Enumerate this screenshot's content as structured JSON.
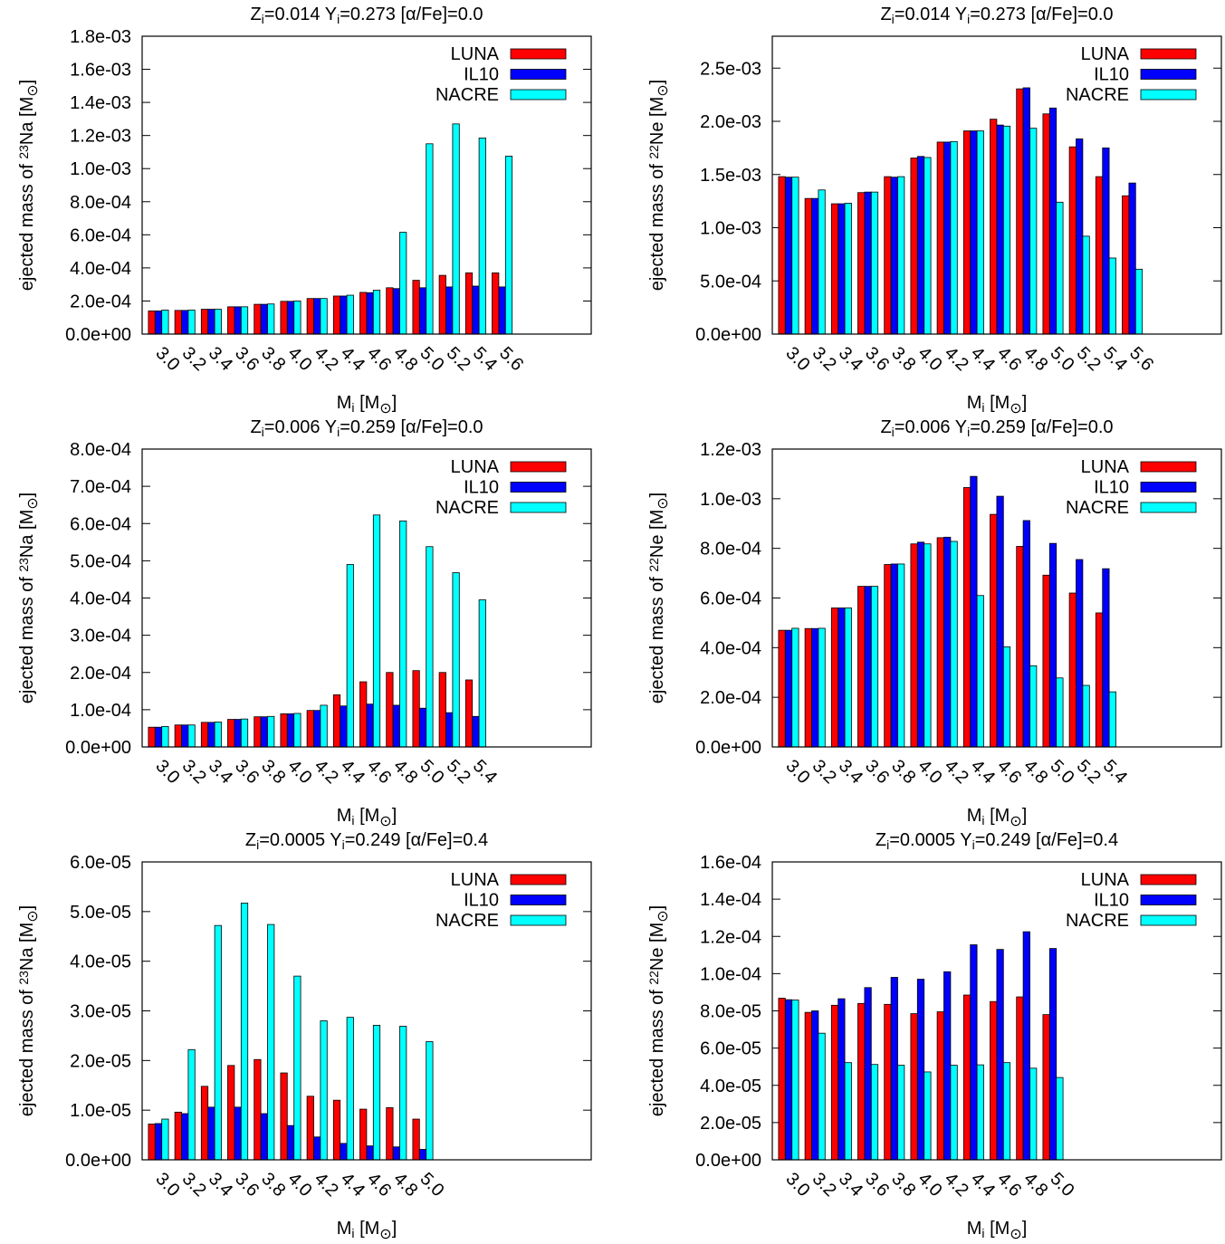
{
  "colors": {
    "LUNA": "#ff0000",
    "IL10": "#0000ff",
    "NACRE": "#00ffff"
  },
  "chart_data": [
    {
      "type": "bar",
      "title_parts": [
        "Z",
        "i",
        "=0.014 Y",
        "i",
        "=0.273  [α/Fe]=0.0"
      ],
      "ylabel_parts": [
        "ejected mass  of ",
        "23",
        "Na  [M",
        "⊙",
        "]"
      ],
      "xlabel_parts": [
        "M",
        "i",
        " [M",
        "⊙",
        "]"
      ],
      "categories": [
        "3.0",
        "3.2",
        "3.4",
        "3.6",
        "3.8",
        "4.0",
        "4.2",
        "4.4",
        "4.6",
        "4.8",
        "5.0",
        "5.2",
        "5.4",
        "5.6"
      ],
      "ylim": [
        0,
        0.0018
      ],
      "yticks": [
        "0.0e+00",
        "2.0e-04",
        "4.0e-04",
        "6.0e-04",
        "8.0e-04",
        "1.0e-03",
        "1.2e-03",
        "1.4e-03",
        "1.6e-03",
        "1.8e-03"
      ],
      "legend_position": "top-right",
      "series": [
        {
          "name": "LUNA",
          "values": [
            0.00014,
            0.000143,
            0.00015,
            0.000165,
            0.00018,
            0.000198,
            0.000215,
            0.00023,
            0.000252,
            0.00028,
            0.000325,
            0.000355,
            0.00037,
            0.00037
          ]
        },
        {
          "name": "IL10",
          "values": [
            0.00014,
            0.000143,
            0.00015,
            0.000165,
            0.00018,
            0.000198,
            0.000215,
            0.00023,
            0.00025,
            0.000275,
            0.00028,
            0.000285,
            0.00029,
            0.000285
          ]
        },
        {
          "name": "NACRE",
          "values": [
            0.000145,
            0.000145,
            0.00015,
            0.000165,
            0.000182,
            0.0002,
            0.000215,
            0.000235,
            0.000265,
            0.000615,
            0.00115,
            0.00127,
            0.001185,
            0.001075
          ]
        }
      ]
    },
    {
      "type": "bar",
      "title_parts": [
        "Z",
        "i",
        "=0.014 Y",
        "i",
        "=0.273  [α/Fe]=0.0"
      ],
      "ylabel_parts": [
        "ejected mass  of ",
        "22",
        "Ne  [M",
        "⊙",
        "]"
      ],
      "xlabel_parts": [
        "M",
        "i",
        " [M",
        "⊙",
        "]"
      ],
      "categories": [
        "3.0",
        "3.2",
        "3.4",
        "3.6",
        "3.8",
        "4.0",
        "4.2",
        "4.4",
        "4.6",
        "4.8",
        "5.0",
        "5.2",
        "5.4",
        "5.6"
      ],
      "ylim": [
        0,
        0.0028
      ],
      "yticks": [
        "0.0e+00",
        "5.0e-04",
        "1.0e-03",
        "1.5e-03",
        "2.0e-03",
        "2.5e-03"
      ],
      "ytick_values": [
        0,
        0.0005,
        0.001,
        0.0015,
        0.002,
        0.0025
      ],
      "legend_position": "top-right",
      "series": [
        {
          "name": "LUNA",
          "values": [
            0.00148,
            0.001275,
            0.001225,
            0.00133,
            0.00148,
            0.001655,
            0.001805,
            0.00191,
            0.00202,
            0.002305,
            0.00207,
            0.00176,
            0.00148,
            0.0013
          ]
        },
        {
          "name": "IL10",
          "values": [
            0.001475,
            0.001275,
            0.001225,
            0.001335,
            0.001475,
            0.00167,
            0.001805,
            0.00191,
            0.001965,
            0.002315,
            0.002125,
            0.001835,
            0.00175,
            0.00142
          ]
        },
        {
          "name": "NACRE",
          "values": [
            0.001475,
            0.001355,
            0.00123,
            0.001335,
            0.00148,
            0.00166,
            0.00181,
            0.00191,
            0.001955,
            0.001935,
            0.00124,
            0.00092,
            0.000715,
            0.00061
          ]
        }
      ]
    },
    {
      "type": "bar",
      "title_parts": [
        "Z",
        "i",
        "=0.006 Y",
        "i",
        "=0.259  [α/Fe]=0.0"
      ],
      "ylabel_parts": [
        "ejected mass  of ",
        "23",
        "Na  [M",
        "⊙",
        "]"
      ],
      "xlabel_parts": [
        "M",
        "i",
        " [M",
        "⊙",
        "]"
      ],
      "categories": [
        "3.0",
        "3.2",
        "3.4",
        "3.6",
        "3.8",
        "4.0",
        "4.2",
        "4.4",
        "4.6",
        "4.8",
        "5.0",
        "5.2",
        "5.4"
      ],
      "ylim": [
        0,
        0.0008
      ],
      "yticks": [
        "0.0e+00",
        "1.0e-04",
        "2.0e-04",
        "3.0e-04",
        "4.0e-04",
        "5.0e-04",
        "6.0e-04",
        "7.0e-04",
        "8.0e-04"
      ],
      "legend_position": "top-right",
      "series": [
        {
          "name": "LUNA",
          "values": [
            5.3e-05,
            5.9e-05,
            6.6e-05,
            7.4e-05,
            8.1e-05,
            8.9e-05,
            9.8e-05,
            0.00014,
            0.000175,
            0.0002,
            0.000205,
            0.0002,
            0.00018
          ]
        },
        {
          "name": "IL10",
          "values": [
            5.3e-05,
            5.9e-05,
            6.6e-05,
            7.4e-05,
            8.1e-05,
            8.9e-05,
            9.8e-05,
            0.00011,
            0.000115,
            0.000112,
            0.000104,
            9.2e-05,
            8.2e-05
          ]
        },
        {
          "name": "NACRE",
          "values": [
            5.5e-05,
            5.9e-05,
            6.7e-05,
            7.5e-05,
            8.2e-05,
            9e-05,
            0.000112,
            0.00049,
            0.000623,
            0.000607,
            0.000538,
            0.000468,
            0.000395
          ]
        }
      ]
    },
    {
      "type": "bar",
      "title_parts": [
        "Z",
        "i",
        "=0.006 Y",
        "i",
        "=0.259  [α/Fe]=0.0"
      ],
      "ylabel_parts": [
        "ejected mass  of ",
        "22",
        "Ne  [M",
        "⊙",
        "]"
      ],
      "xlabel_parts": [
        "M",
        "i",
        " [M",
        "⊙",
        "]"
      ],
      "categories": [
        "3.0",
        "3.2",
        "3.4",
        "3.6",
        "3.8",
        "4.0",
        "4.2",
        "4.4",
        "4.6",
        "4.8",
        "5.0",
        "5.2",
        "5.4"
      ],
      "ylim": [
        0,
        0.0012
      ],
      "yticks": [
        "0.0e+00",
        "2.0e-04",
        "4.0e-04",
        "6.0e-04",
        "8.0e-04",
        "1.0e-03",
        "1.2e-03"
      ],
      "legend_position": "top-right",
      "series": [
        {
          "name": "LUNA",
          "values": [
            0.00047,
            0.000477,
            0.00056,
            0.000647,
            0.000735,
            0.000818,
            0.000843,
            0.001045,
            0.000937,
            0.000808,
            0.000692,
            0.00062,
            0.00054
          ]
        },
        {
          "name": "IL10",
          "values": [
            0.00047,
            0.000477,
            0.00056,
            0.000647,
            0.000737,
            0.000825,
            0.000845,
            0.00109,
            0.00101,
            0.000912,
            0.00082,
            0.000755,
            0.000718
          ]
        },
        {
          "name": "NACRE",
          "values": [
            0.000478,
            0.000478,
            0.00056,
            0.000647,
            0.000737,
            0.000818,
            0.000828,
            0.00061,
            0.000403,
            0.000327,
            0.000278,
            0.000248,
            0.000222
          ]
        }
      ]
    },
    {
      "type": "bar",
      "title_parts": [
        "Z",
        "i",
        "=0.0005 Y",
        "i",
        "=0.249  [α/Fe]=0.4"
      ],
      "ylabel_parts": [
        "ejected mass  of ",
        "23",
        "Na  [M",
        "⊙",
        "]"
      ],
      "xlabel_parts": [
        "M",
        "i",
        " [M",
        "⊙",
        "]"
      ],
      "categories": [
        "3.0",
        "3.2",
        "3.4",
        "3.6",
        "3.8",
        "4.0",
        "4.2",
        "4.4",
        "4.6",
        "4.8",
        "5.0"
      ],
      "ylim": [
        0,
        6e-05
      ],
      "yticks": [
        "0.0e+00",
        "1.0e-05",
        "2.0e-05",
        "3.0e-05",
        "4.0e-05",
        "5.0e-05",
        "6.0e-05"
      ],
      "legend_position": "top-right",
      "series": [
        {
          "name": "LUNA",
          "values": [
            7.2e-06,
            9.6e-06,
            1.48e-05,
            1.9e-05,
            2.02e-05,
            1.75e-05,
            1.28e-05,
            1.2e-05,
            1.02e-05,
            1.05e-05,
            8.2e-06
          ]
        },
        {
          "name": "IL10",
          "values": [
            7.3e-06,
            9.3e-06,
            1.06e-05,
            1.06e-05,
            9.3e-06,
            6.9e-06,
            4.6e-06,
            3.3e-06,
            2.8e-06,
            2.6e-06,
            2.1e-06
          ]
        },
        {
          "name": "NACRE",
          "values": [
            8.2e-06,
            2.22e-05,
            4.72e-05,
            5.17e-05,
            4.74e-05,
            3.7e-05,
            2.8e-05,
            2.87e-05,
            2.71e-05,
            2.69e-05,
            2.38e-05
          ]
        }
      ]
    },
    {
      "type": "bar",
      "title_parts": [
        "Z",
        "i",
        "=0.0005 Y",
        "i",
        "=0.249  [α/Fe]=0.4"
      ],
      "ylabel_parts": [
        "ejected mass  of ",
        "22",
        "Ne  [M",
        "⊙",
        "]"
      ],
      "xlabel_parts": [
        "M",
        "i",
        " [M",
        "⊙",
        "]"
      ],
      "categories": [
        "3.0",
        "3.2",
        "3.4",
        "3.6",
        "3.8",
        "4.0",
        "4.2",
        "4.4",
        "4.6",
        "4.8",
        "5.0"
      ],
      "ylim": [
        0,
        0.00016
      ],
      "yticks": [
        "0.0e+00",
        "2.0e-05",
        "4.0e-05",
        "6.0e-05",
        "8.0e-05",
        "1.0e-04",
        "1.2e-04",
        "1.4e-04",
        "1.6e-04"
      ],
      "legend_position": "top-right",
      "series": [
        {
          "name": "LUNA",
          "values": [
            8.68e-05,
            7.92e-05,
            8.3e-05,
            8.4e-05,
            8.35e-05,
            7.85e-05,
            7.95e-05,
            8.85e-05,
            8.5e-05,
            8.75e-05,
            7.8e-05
          ]
        },
        {
          "name": "IL10",
          "values": [
            8.6e-05,
            8e-05,
            8.65e-05,
            9.25e-05,
            9.8e-05,
            9.7e-05,
            0.000101,
            0.0001155,
            0.000113,
            0.0001225,
            0.0001135
          ]
        },
        {
          "name": "NACRE",
          "values": [
            8.58e-05,
            6.8e-05,
            5.22e-05,
            5.12e-05,
            5.08e-05,
            4.72e-05,
            5.08e-05,
            5.1e-05,
            5.22e-05,
            4.92e-05,
            4.42e-05
          ]
        }
      ]
    }
  ]
}
